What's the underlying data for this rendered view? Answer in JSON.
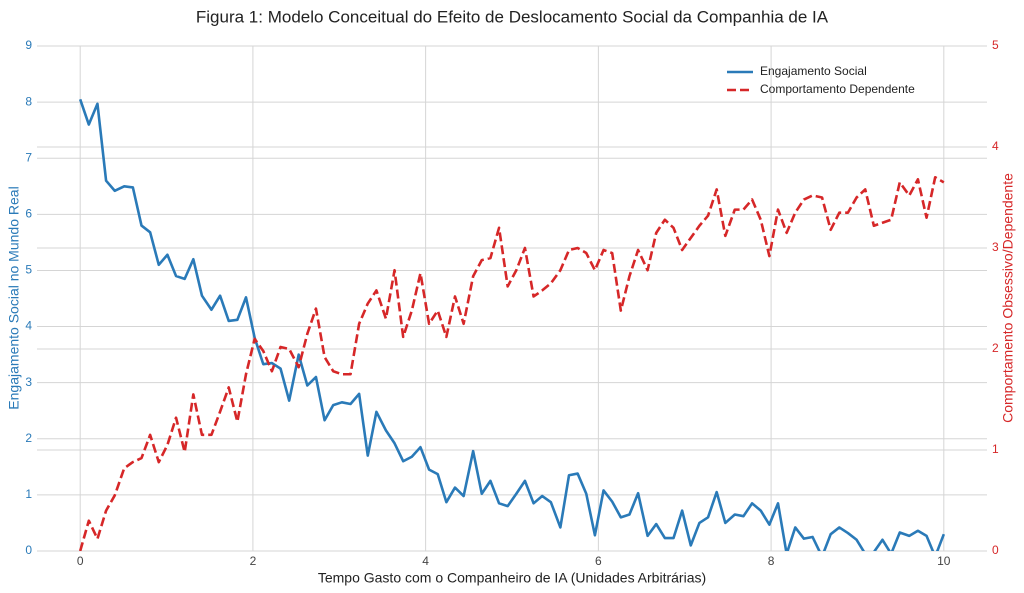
{
  "chart_data": {
    "type": "line",
    "title": "Figura 1: Modelo Conceitual do Efeito de Deslocamento Social da Companhia de IA",
    "xlabel": "Tempo Gasto com o Companheiro de IA (Unidades Arbitrárias)",
    "ylabel": "Engajamento Social no Mundo Real",
    "y2label": "Comportamento Obsessivo/Dependente",
    "xlim": [
      -0.5,
      10.5
    ],
    "xticks": [
      0,
      2,
      4,
      6,
      8,
      10
    ],
    "ylim": [
      0,
      9
    ],
    "yticks": [
      0,
      1,
      2,
      3,
      4,
      5,
      6,
      7,
      8,
      9
    ],
    "y2lim": [
      0,
      5
    ],
    "y2ticks": [
      0,
      1,
      2,
      3,
      4,
      5
    ],
    "grid": true,
    "legend": "upper right",
    "x": [
      0,
      0.1,
      0.2,
      0.3,
      0.4,
      0.51,
      0.61,
      0.71,
      0.81,
      0.91,
      1.01,
      1.11,
      1.21,
      1.31,
      1.41,
      1.52,
      1.62,
      1.72,
      1.82,
      1.92,
      2.02,
      2.12,
      2.22,
      2.32,
      2.42,
      2.53,
      2.63,
      2.73,
      2.83,
      2.93,
      3.03,
      3.13,
      3.23,
      3.33,
      3.43,
      3.54,
      3.64,
      3.74,
      3.84,
      3.94,
      4.04,
      4.14,
      4.24,
      4.34,
      4.44,
      4.55,
      4.65,
      4.75,
      4.85,
      4.95,
      5.05,
      5.15,
      5.25,
      5.35,
      5.45,
      5.56,
      5.66,
      5.76,
      5.86,
      5.96,
      6.06,
      6.16,
      6.26,
      6.36,
      6.46,
      6.57,
      6.67,
      6.77,
      6.87,
      6.97,
      7.07,
      7.17,
      7.27,
      7.37,
      7.47,
      7.58,
      7.68,
      7.78,
      7.88,
      7.98,
      8.08,
      8.18,
      8.28,
      8.38,
      8.48,
      8.59,
      8.69,
      8.79,
      8.89,
      8.99,
      9.09,
      9.19,
      9.29,
      9.39,
      9.49,
      9.6,
      9.7,
      9.8,
      9.9,
      10
    ],
    "series": [
      {
        "name": "Engajamento Social",
        "color": "#2a7ab8",
        "linestyle": "solid",
        "axis": "y",
        "values": [
          8.05,
          7.6,
          7.97,
          6.6,
          6.42,
          6.5,
          6.48,
          5.8,
          5.68,
          5.1,
          5.28,
          4.9,
          4.85,
          5.2,
          4.55,
          4.3,
          4.55,
          4.1,
          4.12,
          4.52,
          3.8,
          3.33,
          3.35,
          3.25,
          2.68,
          3.5,
          2.95,
          3.1,
          2.33,
          2.6,
          2.65,
          2.62,
          2.8,
          1.7,
          2.48,
          2.15,
          1.92,
          1.6,
          1.68,
          1.85,
          1.45,
          1.37,
          0.87,
          1.13,
          0.98,
          1.78,
          1.02,
          1.25,
          0.85,
          0.8,
          1.02,
          1.25,
          0.85,
          0.98,
          0.87,
          0.42,
          1.35,
          1.38,
          1.02,
          0.28,
          1.08,
          0.88,
          0.6,
          0.65,
          1.03,
          0.27,
          0.48,
          0.23,
          0.23,
          0.72,
          0.1,
          0.5,
          0.6,
          1.05,
          0.5,
          0.65,
          0.62,
          0.85,
          0.72,
          0.47,
          0.85,
          -0.05,
          0.42,
          0.22,
          0.25,
          -0.1,
          0.3,
          0.42,
          0.32,
          0.2,
          -0.05,
          -0.02,
          0.2,
          -0.05,
          0.33,
          0.27,
          0.36,
          0.27,
          -0.1,
          0.3
        ]
      },
      {
        "name": "Comportamento Dependente",
        "color": "#d62728",
        "linestyle": "dashed",
        "axis": "y2",
        "values": [
          0.0,
          0.3,
          0.12,
          0.4,
          0.55,
          0.82,
          0.88,
          0.92,
          1.15,
          0.88,
          1.05,
          1.32,
          0.98,
          1.55,
          1.15,
          1.15,
          1.38,
          1.62,
          1.28,
          1.75,
          2.1,
          1.98,
          1.78,
          2.02,
          2.0,
          1.82,
          2.15,
          2.4,
          1.92,
          1.78,
          1.75,
          1.75,
          2.25,
          2.45,
          2.58,
          2.3,
          2.78,
          2.12,
          2.38,
          2.75,
          2.25,
          2.38,
          2.12,
          2.52,
          2.25,
          2.72,
          2.88,
          2.9,
          3.2,
          2.62,
          2.78,
          3.0,
          2.52,
          2.58,
          2.65,
          2.78,
          2.98,
          3.0,
          2.95,
          2.78,
          2.98,
          2.95,
          2.38,
          2.72,
          2.98,
          2.78,
          3.15,
          3.28,
          3.2,
          2.98,
          3.1,
          3.22,
          3.32,
          3.58,
          3.12,
          3.38,
          3.38,
          3.48,
          3.28,
          2.92,
          3.38,
          3.15,
          3.35,
          3.48,
          3.52,
          3.5,
          3.18,
          3.35,
          3.35,
          3.5,
          3.58,
          3.22,
          3.25,
          3.28,
          3.65,
          3.52,
          3.68,
          3.3,
          3.7,
          3.65
        ]
      }
    ]
  }
}
